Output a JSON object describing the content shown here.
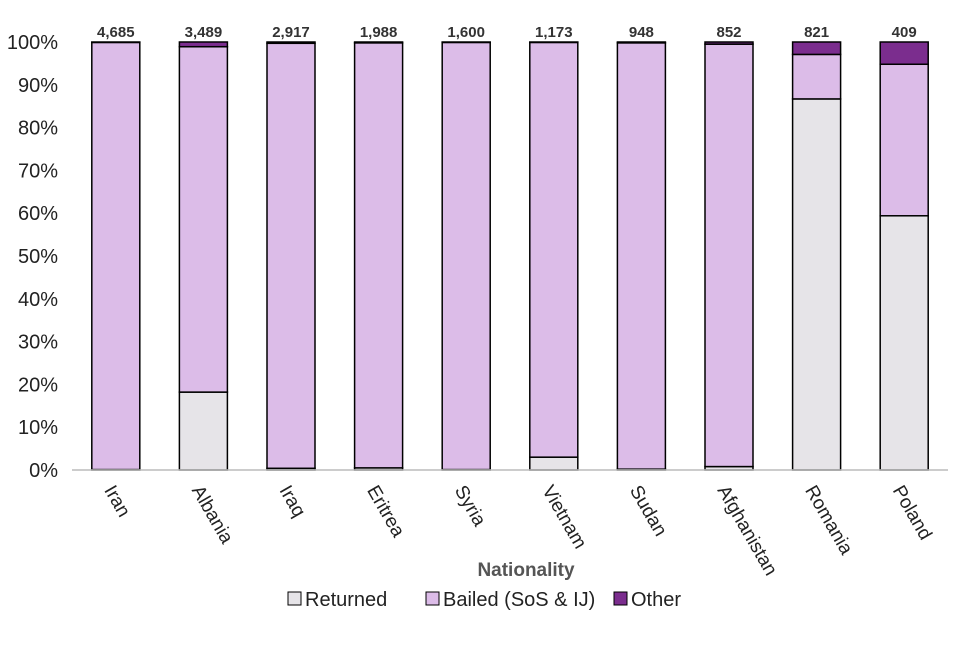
{
  "chart_data": {
    "type": "bar",
    "stacked": true,
    "normalized": true,
    "xlabel": "Nationality",
    "ylabel": "",
    "ylim": [
      0,
      100
    ],
    "yticks": [
      "0%",
      "10%",
      "20%",
      "30%",
      "40%",
      "50%",
      "60%",
      "70%",
      "80%",
      "90%",
      "100%"
    ],
    "categories": [
      "Iran",
      "Albania",
      "Iraq",
      "Eritrea",
      "Syria",
      "Vietnam",
      "Sudan",
      "Afghanistan",
      "Romania",
      "Poland"
    ],
    "totals": [
      "4,685",
      "3,489",
      "2,917",
      "1,988",
      "1,600",
      "1,173",
      "948",
      "852",
      "821",
      "409"
    ],
    "series": [
      {
        "name": "Returned",
        "color": "#e6e4e8",
        "values": [
          0.1,
          18.2,
          0.4,
          0.5,
          0.1,
          3.0,
          0.2,
          0.8,
          86.7,
          59.4
        ]
      },
      {
        "name": "Bailed (SoS & IJ)",
        "color": "#dcbce8",
        "values": [
          99.8,
          80.7,
          99.3,
          99.3,
          99.8,
          96.9,
          99.6,
          98.7,
          10.4,
          35.4
        ]
      },
      {
        "name": "Other",
        "color": "#7b2d8e",
        "values": [
          0.1,
          1.1,
          0.3,
          0.2,
          0.1,
          0.1,
          0.2,
          0.5,
          2.9,
          5.2
        ]
      }
    ],
    "legend_position": "bottom",
    "grid": false
  }
}
